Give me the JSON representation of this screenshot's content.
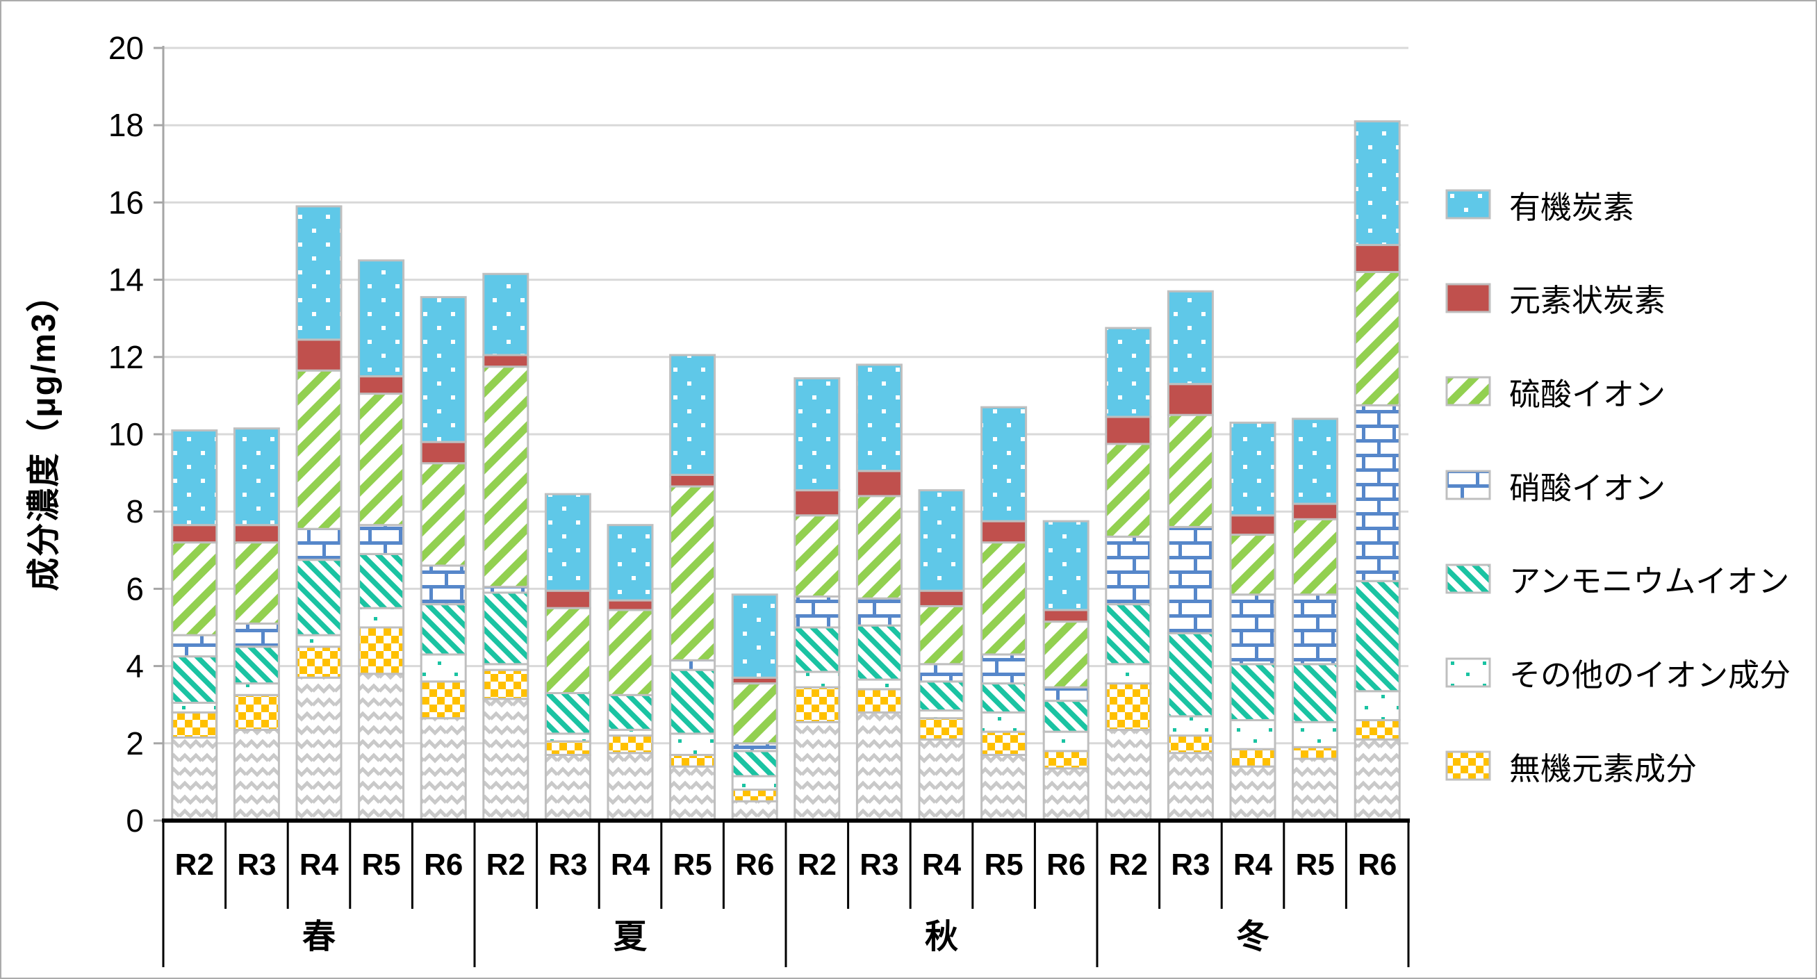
{
  "chart_data": {
    "type": "bar",
    "stacked": true,
    "title": "",
    "ylabel": "成分濃度（μg/m3）",
    "xlabel": "",
    "ylim": [
      0,
      20
    ],
    "ytick_step": 2,
    "yticks": [
      "0",
      "2",
      "4",
      "6",
      "8",
      "10",
      "12",
      "14",
      "16",
      "18",
      "20"
    ],
    "grid": true,
    "legend_position": "right",
    "series": [
      {
        "key": "other_unlabeled",
        "label": "",
        "pattern": "wave",
        "color": "#C9C9C9",
        "in_legend": false
      },
      {
        "key": "inorganic",
        "label": "無機元素成分",
        "pattern": "checker",
        "color": "#FFC000",
        "in_legend": true
      },
      {
        "key": "other_ions",
        "label": "その他のイオン成分",
        "pattern": "dots_sparse",
        "color": "#1AC3A2",
        "in_legend": true
      },
      {
        "key": "ammonium",
        "label": "アンモニウムイオン",
        "pattern": "diag_down",
        "color": "#1AC3A2",
        "in_legend": true
      },
      {
        "key": "nitrate",
        "label": "硝酸イオン",
        "pattern": "brick",
        "color": "#5687CA",
        "in_legend": true
      },
      {
        "key": "sulfate",
        "label": "硫酸イオン",
        "pattern": "diag_up",
        "color": "#92D050",
        "in_legend": true
      },
      {
        "key": "ec",
        "label": "元素状炭素",
        "pattern": "solid",
        "color": "#C0504D",
        "in_legend": true
      },
      {
        "key": "oc",
        "label": "有機炭素",
        "pattern": "dots_blue",
        "color": "#5FC8E8",
        "in_legend": true
      }
    ],
    "legend_order": [
      "oc",
      "ec",
      "sulfate",
      "nitrate",
      "ammonium",
      "other_ions",
      "inorganic"
    ],
    "groups": [
      {
        "label": "春",
        "bars": [
          {
            "label": "R2",
            "values": {
              "other_unlabeled": 2.15,
              "inorganic": 0.65,
              "other_ions": 0.25,
              "ammonium": 1.2,
              "nitrate": 0.55,
              "sulfate": 2.4,
              "ec": 0.45,
              "oc": 2.45
            }
          },
          {
            "label": "R3",
            "values": {
              "other_unlabeled": 2.35,
              "inorganic": 0.9,
              "other_ions": 0.3,
              "ammonium": 0.95,
              "nitrate": 0.6,
              "sulfate": 2.1,
              "ec": 0.45,
              "oc": 2.5
            }
          },
          {
            "label": "R4",
            "values": {
              "other_unlabeled": 3.7,
              "inorganic": 0.8,
              "other_ions": 0.3,
              "ammonium": 1.95,
              "nitrate": 0.8,
              "sulfate": 4.1,
              "ec": 0.8,
              "oc": 3.45
            }
          },
          {
            "label": "R5",
            "values": {
              "other_unlabeled": 3.8,
              "inorganic": 1.2,
              "other_ions": 0.5,
              "ammonium": 1.4,
              "nitrate": 0.75,
              "sulfate": 3.4,
              "ec": 0.45,
              "oc": 3.0
            }
          },
          {
            "label": "R6",
            "values": {
              "other_unlabeled": 2.65,
              "inorganic": 0.95,
              "other_ions": 0.7,
              "ammonium": 1.3,
              "nitrate": 1.0,
              "sulfate": 2.65,
              "ec": 0.55,
              "oc": 3.75
            }
          }
        ]
      },
      {
        "label": "夏",
        "bars": [
          {
            "label": "R2",
            "values": {
              "other_unlabeled": 3.15,
              "inorganic": 0.75,
              "other_ions": 0.15,
              "ammonium": 1.85,
              "nitrate": 0.15,
              "sulfate": 5.7,
              "ec": 0.3,
              "oc": 2.1
            }
          },
          {
            "label": "R3",
            "values": {
              "other_unlabeled": 1.7,
              "inorganic": 0.35,
              "other_ions": 0.2,
              "ammonium": 1.05,
              "nitrate": 0.0,
              "sulfate": 2.2,
              "ec": 0.45,
              "oc": 2.5
            }
          },
          {
            "label": "R4",
            "values": {
              "other_unlabeled": 1.75,
              "inorganic": 0.45,
              "other_ions": 0.15,
              "ammonium": 0.9,
              "nitrate": 0.0,
              "sulfate": 2.2,
              "ec": 0.25,
              "oc": 1.95
            }
          },
          {
            "label": "R5",
            "values": {
              "other_unlabeled": 1.4,
              "inorganic": 0.3,
              "other_ions": 0.55,
              "ammonium": 1.65,
              "nitrate": 0.25,
              "sulfate": 4.5,
              "ec": 0.3,
              "oc": 3.1
            }
          },
          {
            "label": "R6",
            "values": {
              "other_unlabeled": 0.5,
              "inorganic": 0.3,
              "other_ions": 0.35,
              "ammonium": 0.65,
              "nitrate": 0.2,
              "sulfate": 1.55,
              "ec": 0.15,
              "oc": 2.15
            }
          }
        ]
      },
      {
        "label": "秋",
        "bars": [
          {
            "label": "R2",
            "values": {
              "other_unlabeled": 2.55,
              "inorganic": 0.9,
              "other_ions": 0.4,
              "ammonium": 1.15,
              "nitrate": 0.8,
              "sulfate": 2.1,
              "ec": 0.65,
              "oc": 2.9
            }
          },
          {
            "label": "R3",
            "values": {
              "other_unlabeled": 2.8,
              "inorganic": 0.6,
              "other_ions": 0.25,
              "ammonium": 1.4,
              "nitrate": 0.7,
              "sulfate": 2.65,
              "ec": 0.65,
              "oc": 2.75
            }
          },
          {
            "label": "R4",
            "values": {
              "other_unlabeled": 2.1,
              "inorganic": 0.55,
              "other_ions": 0.2,
              "ammonium": 0.75,
              "nitrate": 0.45,
              "sulfate": 1.5,
              "ec": 0.4,
              "oc": 2.6
            }
          },
          {
            "label": "R5",
            "values": {
              "other_unlabeled": 1.7,
              "inorganic": 0.6,
              "other_ions": 0.5,
              "ammonium": 0.75,
              "nitrate": 0.75,
              "sulfate": 2.9,
              "ec": 0.55,
              "oc": 2.95
            }
          },
          {
            "label": "R6",
            "values": {
              "other_unlabeled": 1.35,
              "inorganic": 0.45,
              "other_ions": 0.5,
              "ammonium": 0.8,
              "nitrate": 0.35,
              "sulfate": 1.7,
              "ec": 0.3,
              "oc": 2.3
            }
          }
        ]
      },
      {
        "label": "冬",
        "bars": [
          {
            "label": "R2",
            "values": {
              "other_unlabeled": 2.35,
              "inorganic": 1.2,
              "other_ions": 0.5,
              "ammonium": 1.55,
              "nitrate": 1.75,
              "sulfate": 2.4,
              "ec": 0.7,
              "oc": 2.3
            }
          },
          {
            "label": "R3",
            "values": {
              "other_unlabeled": 1.75,
              "inorganic": 0.45,
              "other_ions": 0.5,
              "ammonium": 2.15,
              "nitrate": 2.75,
              "sulfate": 2.9,
              "ec": 0.8,
              "oc": 2.4
            }
          },
          {
            "label": "R4",
            "values": {
              "other_unlabeled": 1.4,
              "inorganic": 0.45,
              "other_ions": 0.75,
              "ammonium": 1.45,
              "nitrate": 1.8,
              "sulfate": 1.55,
              "ec": 0.5,
              "oc": 2.4
            }
          },
          {
            "label": "R5",
            "values": {
              "other_unlabeled": 1.6,
              "inorganic": 0.3,
              "other_ions": 0.65,
              "ammonium": 1.5,
              "nitrate": 1.8,
              "sulfate": 1.95,
              "ec": 0.4,
              "oc": 2.2
            }
          },
          {
            "label": "R6",
            "values": {
              "other_unlabeled": 2.1,
              "inorganic": 0.5,
              "other_ions": 0.75,
              "ammonium": 2.85,
              "nitrate": 4.55,
              "sulfate": 3.45,
              "ec": 0.7,
              "oc": 3.2
            }
          }
        ]
      }
    ],
    "colors": {
      "grid": "#D9D9D9",
      "segment_border": "#BFBFBF",
      "y_axis": "#A6A6A6",
      "x_axis": "#000000",
      "text": "#000000"
    }
  }
}
